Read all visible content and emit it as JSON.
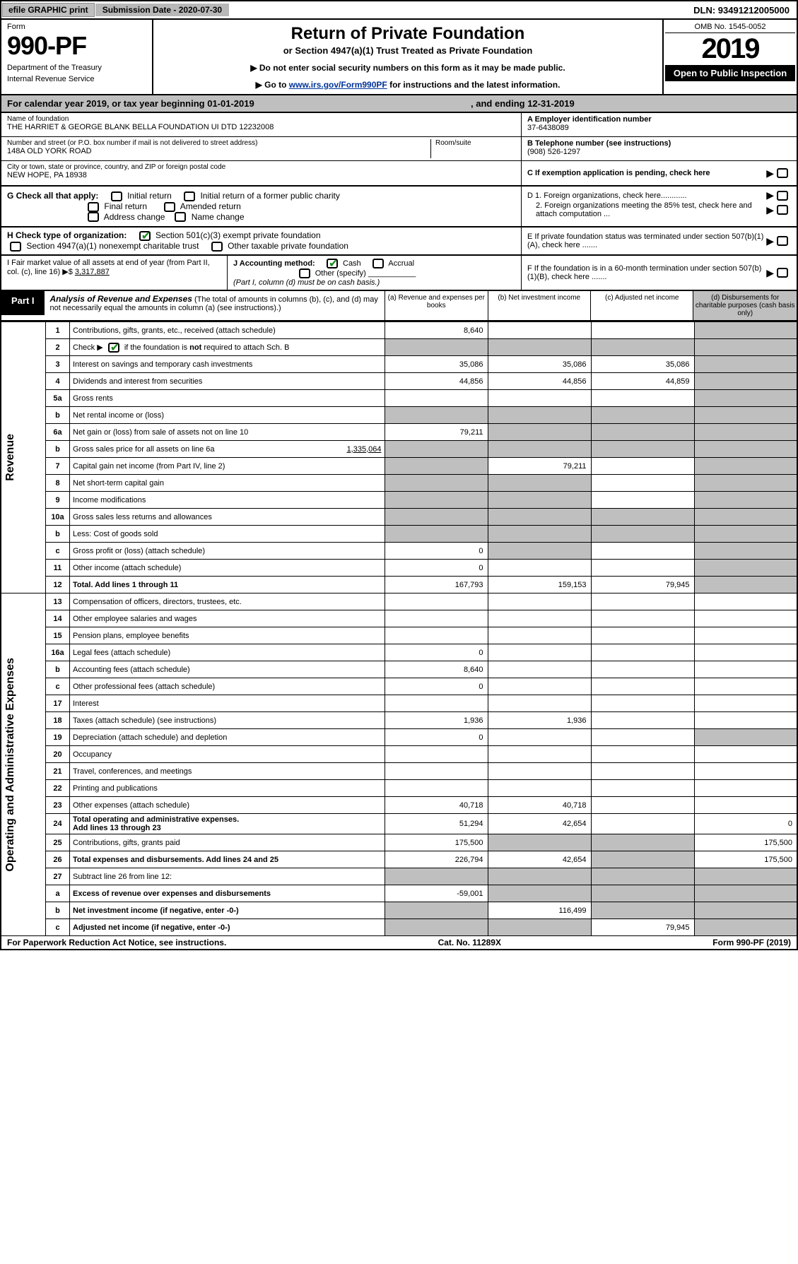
{
  "topbar": {
    "efile": "efile GRAPHIC print",
    "submission": "Submission Date - 2020-07-30",
    "dln": "DLN: 93491212005000"
  },
  "header": {
    "form": "Form",
    "formnum": "990-PF",
    "dept": "Department of the Treasury",
    "irs": "Internal Revenue Service",
    "title": "Return of Private Foundation",
    "sub1": "or Section 4947(a)(1) Trust Treated as Private Foundation",
    "sub2a": "▶ Do not enter social security numbers on this form as it may be made public.",
    "sub2b": "▶ Go to ",
    "sub2link": "www.irs.gov/Form990PF",
    "sub2c": " for instructions and the latest information.",
    "omb": "OMB No. 1545-0052",
    "year": "2019",
    "open": "Open to Public Inspection"
  },
  "cal": {
    "line": "For calendar year 2019, or tax year beginning 01-01-2019",
    "ending": ", and ending 12-31-2019"
  },
  "info": {
    "name_label": "Name of foundation",
    "name": "THE HARRIET & GEORGE BLANK BELLA FOUNDATION UI DTD 12232008",
    "addr_label": "Number and street (or P.O. box number if mail is not delivered to street address)",
    "addr": "148A OLD YORK ROAD",
    "room_label": "Room/suite",
    "city_label": "City or town, state or province, country, and ZIP or foreign postal code",
    "city": "NEW HOPE, PA  18938",
    "a_label": "A Employer identification number",
    "a_val": "37-6438089",
    "b_label": "B Telephone number (see instructions)",
    "b_val": "(908) 526-1297",
    "c_label": "C If exemption application is pending, check here",
    "d1": "D 1. Foreign organizations, check here............",
    "d2": "2. Foreign organizations meeting the 85% test, check here and attach computation ...",
    "e": "E  If private foundation status was terminated under section 507(b)(1)(A), check here .......",
    "f": "F  If the foundation is in a 60-month termination under section 507(b)(1)(B), check here ......."
  },
  "g": {
    "label": "G Check all that apply:",
    "opts": [
      "Initial return",
      "Initial return of a former public charity",
      "Final return",
      "Amended return",
      "Address change",
      "Name change"
    ]
  },
  "h": {
    "label": "H Check type of organization:",
    "opt1": "Section 501(c)(3) exempt private foundation",
    "opt2": "Section 4947(a)(1) nonexempt charitable trust",
    "opt3": "Other taxable private foundation"
  },
  "i": {
    "label": "I Fair market value of all assets at end of year (from Part II, col. (c), line 16) ▶$ ",
    "val": "3,317,887"
  },
  "j": {
    "label": "J Accounting method:",
    "cash": "Cash",
    "accrual": "Accrual",
    "other": "Other (specify)",
    "note": "(Part I, column (d) must be on cash basis.)"
  },
  "part1": {
    "tag": "Part I",
    "title": "Analysis of Revenue and Expenses",
    "note": "(The total of amounts in columns (b), (c), and (d) may not necessarily equal the amounts in column (a) (see instructions).)",
    "cols": {
      "a": "(a) Revenue and expenses per books",
      "b": "(b) Net investment income",
      "c": "(c) Adjusted net income",
      "d": "(d) Disbursements for charitable purposes (cash basis only)"
    }
  },
  "sides": {
    "rev": "Revenue",
    "exp": "Operating and Administrative Expenses"
  },
  "rows": {
    "r1": {
      "n": "1",
      "d": "Contributions, gifts, grants, etc., received (attach schedule)",
      "a": "8,640"
    },
    "r2": {
      "n": "2",
      "d": "Check ▶",
      "d2": "if the foundation is not required to attach Sch. B"
    },
    "r3": {
      "n": "3",
      "d": "Interest on savings and temporary cash investments",
      "a": "35,086",
      "b": "35,086",
      "c": "35,086"
    },
    "r4": {
      "n": "4",
      "d": "Dividends and interest from securities",
      "a": "44,856",
      "b": "44,856",
      "c": "44,859"
    },
    "r5a": {
      "n": "5a",
      "d": "Gross rents"
    },
    "r5b": {
      "n": "b",
      "d": "Net rental income or (loss)"
    },
    "r6a": {
      "n": "6a",
      "d": "Net gain or (loss) from sale of assets not on line 10",
      "a": "79,211"
    },
    "r6b": {
      "n": "b",
      "d": "Gross sales price for all assets on line 6a",
      "v": "1,335,064"
    },
    "r7": {
      "n": "7",
      "d": "Capital gain net income (from Part IV, line 2)",
      "b": "79,211"
    },
    "r8": {
      "n": "8",
      "d": "Net short-term capital gain"
    },
    "r9": {
      "n": "9",
      "d": "Income modifications"
    },
    "r10a": {
      "n": "10a",
      "d": "Gross sales less returns and allowances"
    },
    "r10b": {
      "n": "b",
      "d": "Less: Cost of goods sold"
    },
    "r10c": {
      "n": "c",
      "d": "Gross profit or (loss) (attach schedule)",
      "a": "0"
    },
    "r11": {
      "n": "11",
      "d": "Other income (attach schedule)",
      "a": "0"
    },
    "r12": {
      "n": "12",
      "d": "Total. Add lines 1 through 11",
      "a": "167,793",
      "b": "159,153",
      "c": "79,945"
    },
    "r13": {
      "n": "13",
      "d": "Compensation of officers, directors, trustees, etc."
    },
    "r14": {
      "n": "14",
      "d": "Other employee salaries and wages"
    },
    "r15": {
      "n": "15",
      "d": "Pension plans, employee benefits"
    },
    "r16a": {
      "n": "16a",
      "d": "Legal fees (attach schedule)",
      "a": "0"
    },
    "r16b": {
      "n": "b",
      "d": "Accounting fees (attach schedule)",
      "a": "8,640"
    },
    "r16c": {
      "n": "c",
      "d": "Other professional fees (attach schedule)",
      "a": "0"
    },
    "r17": {
      "n": "17",
      "d": "Interest"
    },
    "r18": {
      "n": "18",
      "d": "Taxes (attach schedule) (see instructions)",
      "a": "1,936",
      "b": "1,936"
    },
    "r19": {
      "n": "19",
      "d": "Depreciation (attach schedule) and depletion",
      "a": "0"
    },
    "r20": {
      "n": "20",
      "d": "Occupancy"
    },
    "r21": {
      "n": "21",
      "d": "Travel, conferences, and meetings"
    },
    "r22": {
      "n": "22",
      "d": "Printing and publications"
    },
    "r23": {
      "n": "23",
      "d": "Other expenses (attach schedule)",
      "a": "40,718",
      "b": "40,718"
    },
    "r24": {
      "n": "24",
      "d": "Total operating and administrative expenses.",
      "d2": "Add lines 13 through 23",
      "a": "51,294",
      "b": "42,654",
      "dcol": "0"
    },
    "r25": {
      "n": "25",
      "d": "Contributions, gifts, grants paid",
      "a": "175,500",
      "dcol": "175,500"
    },
    "r26": {
      "n": "26",
      "d": "Total expenses and disbursements. Add lines 24 and 25",
      "a": "226,794",
      "b": "42,654",
      "dcol": "175,500"
    },
    "r27": {
      "n": "27",
      "d": "Subtract line 26 from line 12:"
    },
    "r27a": {
      "n": "a",
      "d": "Excess of revenue over expenses and disbursements",
      "a": "-59,001"
    },
    "r27b": {
      "n": "b",
      "d": "Net investment income (if negative, enter -0-)",
      "b": "116,499"
    },
    "r27c": {
      "n": "c",
      "d": "Adjusted net income (if negative, enter -0-)",
      "c": "79,945"
    }
  },
  "footer": {
    "left": "For Paperwork Reduction Act Notice, see instructions.",
    "mid": "Cat. No. 11289X",
    "right": "Form 990-PF (2019)"
  }
}
